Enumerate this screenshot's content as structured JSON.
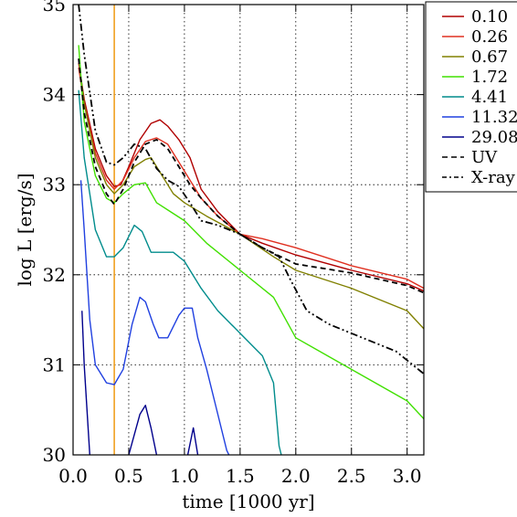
{
  "chart_data": {
    "type": "line",
    "title": "",
    "xlabel": "time [1000 yr]",
    "ylabel": "log L [erg/s]",
    "xlim": [
      0.0,
      3.15
    ],
    "ylim": [
      30,
      35
    ],
    "xticks": [
      0.0,
      0.5,
      1.0,
      1.5,
      2.0,
      2.5,
      3.0
    ],
    "xtick_labels": [
      "0.0",
      "0.5",
      "1.0",
      "1.5",
      "2.0",
      "2.5",
      "3.0"
    ],
    "yticks": [
      30,
      31,
      32,
      33,
      34,
      35
    ],
    "ytick_labels": [
      "30",
      "31",
      "32",
      "33",
      "34",
      "35"
    ],
    "grid": true,
    "legend_position": "top-right",
    "vertical_marker": {
      "x": 0.37,
      "color": "#f0a020"
    },
    "series": [
      {
        "name": "0.10",
        "color": "#b00000",
        "dash": "solid",
        "points": [
          [
            0.05,
            34.35
          ],
          [
            0.1,
            33.95
          ],
          [
            0.2,
            33.4
          ],
          [
            0.3,
            33.1
          ],
          [
            0.37,
            32.98
          ],
          [
            0.43,
            33.0
          ],
          [
            0.5,
            33.2
          ],
          [
            0.6,
            33.5
          ],
          [
            0.7,
            33.68
          ],
          [
            0.78,
            33.72
          ],
          [
            0.85,
            33.65
          ],
          [
            0.95,
            33.5
          ],
          [
            1.05,
            33.3
          ],
          [
            1.15,
            32.95
          ],
          [
            1.3,
            32.7
          ],
          [
            1.5,
            32.45
          ],
          [
            1.7,
            32.35
          ],
          [
            2.0,
            32.22
          ],
          [
            2.5,
            32.05
          ],
          [
            3.0,
            31.9
          ],
          [
            3.15,
            31.82
          ]
        ]
      },
      {
        "name": "0.26",
        "color": "#e03020",
        "dash": "solid",
        "points": [
          [
            0.05,
            34.3
          ],
          [
            0.1,
            33.9
          ],
          [
            0.2,
            33.35
          ],
          [
            0.3,
            33.05
          ],
          [
            0.37,
            32.95
          ],
          [
            0.45,
            33.05
          ],
          [
            0.55,
            33.3
          ],
          [
            0.65,
            33.48
          ],
          [
            0.75,
            33.52
          ],
          [
            0.85,
            33.45
          ],
          [
            0.95,
            33.25
          ],
          [
            1.05,
            33.05
          ],
          [
            1.15,
            32.85
          ],
          [
            1.3,
            32.65
          ],
          [
            1.5,
            32.45
          ],
          [
            1.7,
            32.4
          ],
          [
            2.0,
            32.3
          ],
          [
            2.5,
            32.1
          ],
          [
            3.0,
            31.95
          ],
          [
            3.15,
            31.85
          ]
        ]
      },
      {
        "name": "0.67",
        "color": "#808000",
        "dash": "solid",
        "points": [
          [
            0.05,
            34.4
          ],
          [
            0.1,
            33.9
          ],
          [
            0.2,
            33.3
          ],
          [
            0.3,
            33.0
          ],
          [
            0.37,
            32.9
          ],
          [
            0.45,
            33.0
          ],
          [
            0.55,
            33.2
          ],
          [
            0.65,
            33.28
          ],
          [
            0.7,
            33.3
          ],
          [
            0.8,
            33.1
          ],
          [
            0.9,
            32.9
          ],
          [
            1.0,
            32.8
          ],
          [
            1.2,
            32.65
          ],
          [
            1.5,
            32.45
          ],
          [
            1.8,
            32.2
          ],
          [
            2.0,
            32.05
          ],
          [
            2.5,
            31.85
          ],
          [
            3.0,
            31.6
          ],
          [
            3.15,
            31.4
          ]
        ]
      },
      {
        "name": "1.72",
        "color": "#40e000",
        "dash": "solid",
        "points": [
          [
            0.05,
            34.55
          ],
          [
            0.1,
            33.7
          ],
          [
            0.2,
            33.1
          ],
          [
            0.3,
            32.85
          ],
          [
            0.37,
            32.8
          ],
          [
            0.45,
            32.9
          ],
          [
            0.55,
            33.0
          ],
          [
            0.65,
            33.02
          ],
          [
            0.75,
            32.8
          ],
          [
            0.9,
            32.68
          ],
          [
            1.0,
            32.6
          ],
          [
            1.2,
            32.35
          ],
          [
            1.5,
            32.05
          ],
          [
            1.8,
            31.75
          ],
          [
            2.0,
            31.3
          ],
          [
            2.5,
            30.95
          ],
          [
            3.0,
            30.6
          ],
          [
            3.15,
            30.4
          ]
        ]
      },
      {
        "name": "4.41",
        "color": "#008c8c",
        "dash": "solid",
        "points": [
          [
            0.05,
            34.05
          ],
          [
            0.1,
            33.3
          ],
          [
            0.2,
            32.5
          ],
          [
            0.3,
            32.2
          ],
          [
            0.37,
            32.2
          ],
          [
            0.45,
            32.3
          ],
          [
            0.55,
            32.55
          ],
          [
            0.62,
            32.48
          ],
          [
            0.7,
            32.25
          ],
          [
            0.8,
            32.25
          ],
          [
            0.9,
            32.25
          ],
          [
            1.0,
            32.15
          ],
          [
            1.15,
            31.85
          ],
          [
            1.3,
            31.6
          ],
          [
            1.5,
            31.35
          ],
          [
            1.7,
            31.1
          ],
          [
            1.8,
            30.8
          ],
          [
            1.85,
            30.1
          ],
          [
            1.87,
            30.0
          ]
        ]
      },
      {
        "name": "11.32",
        "color": "#2040e0",
        "dash": "solid",
        "points": [
          [
            0.07,
            33.05
          ],
          [
            0.1,
            32.5
          ],
          [
            0.15,
            31.5
          ],
          [
            0.2,
            31.0
          ],
          [
            0.3,
            30.8
          ],
          [
            0.37,
            30.78
          ],
          [
            0.45,
            30.95
          ],
          [
            0.53,
            31.45
          ],
          [
            0.6,
            31.75
          ],
          [
            0.65,
            31.7
          ],
          [
            0.72,
            31.45
          ],
          [
            0.77,
            31.3
          ],
          [
            0.85,
            31.3
          ],
          [
            0.95,
            31.55
          ],
          [
            1.0,
            31.63
          ],
          [
            1.07,
            31.63
          ],
          [
            1.12,
            31.3
          ],
          [
            1.2,
            30.95
          ],
          [
            1.3,
            30.45
          ],
          [
            1.38,
            30.05
          ],
          [
            1.4,
            30.0
          ]
        ]
      },
      {
        "name": "29.08",
        "color": "#00008c",
        "dash": "solid",
        "points": [
          [
            0.08,
            31.6
          ],
          [
            0.1,
            31.0
          ],
          [
            0.13,
            30.4
          ],
          [
            0.15,
            30.0
          ]
        ]
      },
      {
        "name": "29.08b",
        "color": "#00008c",
        "dash": "solid",
        "legend": false,
        "points": [
          [
            0.5,
            30.0
          ],
          [
            0.6,
            30.45
          ],
          [
            0.65,
            30.55
          ],
          [
            0.7,
            30.3
          ],
          [
            0.75,
            30.0
          ]
        ]
      },
      {
        "name": "29.08c",
        "color": "#00008c",
        "dash": "solid",
        "legend": false,
        "points": [
          [
            1.03,
            30.0
          ],
          [
            1.08,
            30.3
          ],
          [
            1.12,
            30.0
          ]
        ]
      },
      {
        "name": "UV",
        "color": "#000000",
        "dash": "dashed",
        "points": [
          [
            0.05,
            34.4
          ],
          [
            0.1,
            33.8
          ],
          [
            0.2,
            33.2
          ],
          [
            0.3,
            32.9
          ],
          [
            0.37,
            32.78
          ],
          [
            0.45,
            32.95
          ],
          [
            0.55,
            33.25
          ],
          [
            0.65,
            33.45
          ],
          [
            0.75,
            33.5
          ],
          [
            0.85,
            33.4
          ],
          [
            0.95,
            33.2
          ],
          [
            1.05,
            33.0
          ],
          [
            1.15,
            32.85
          ],
          [
            1.3,
            32.65
          ],
          [
            1.5,
            32.45
          ],
          [
            1.7,
            32.3
          ],
          [
            2.0,
            32.12
          ],
          [
            2.5,
            32.02
          ],
          [
            3.0,
            31.88
          ],
          [
            3.15,
            31.8
          ]
        ]
      },
      {
        "name": "X-ray",
        "color": "#000000",
        "dash": "dashdot",
        "points": [
          [
            0.05,
            35.0
          ],
          [
            0.1,
            34.45
          ],
          [
            0.2,
            33.6
          ],
          [
            0.3,
            33.25
          ],
          [
            0.37,
            33.22
          ],
          [
            0.45,
            33.3
          ],
          [
            0.55,
            33.45
          ],
          [
            0.65,
            33.4
          ],
          [
            0.75,
            33.18
          ],
          [
            0.85,
            33.05
          ],
          [
            0.95,
            32.98
          ],
          [
            1.05,
            32.8
          ],
          [
            1.15,
            32.6
          ],
          [
            1.3,
            32.55
          ],
          [
            1.5,
            32.45
          ],
          [
            1.7,
            32.3
          ],
          [
            1.85,
            32.2
          ],
          [
            1.95,
            31.95
          ],
          [
            2.1,
            31.6
          ],
          [
            2.3,
            31.45
          ],
          [
            2.6,
            31.3
          ],
          [
            2.9,
            31.15
          ],
          [
            3.15,
            30.9
          ]
        ]
      }
    ]
  }
}
